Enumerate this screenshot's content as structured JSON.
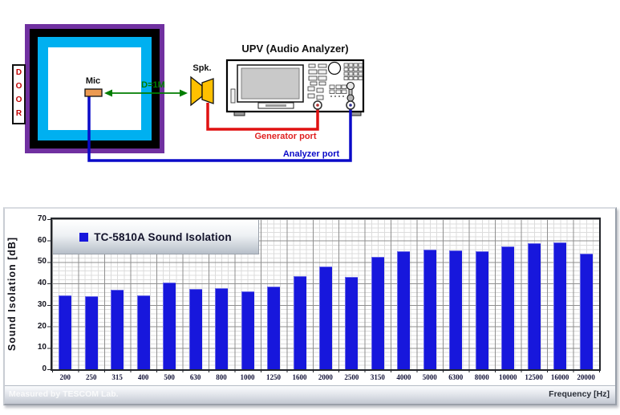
{
  "diagram": {
    "door_label": "DOOR",
    "mic_label": "Mic",
    "spk_label": "Spk.",
    "distance_label": "D=1M",
    "device_title": "UPV (Audio Analyzer)",
    "generator_port_label": "Generator port",
    "analyzer_port_label": "Analyzer port",
    "colors": {
      "chamber_outer": "#7030A0",
      "chamber_mid": "#000000",
      "chamber_inner": "#00B0F0",
      "mic": "#EC9A52",
      "speaker": "#FFC000",
      "generator_cable": "#E01111",
      "analyzer_cable": "#0A0AC8",
      "distance_arrow": "#007D00",
      "door_text": "#C00000"
    }
  },
  "chart_data": {
    "type": "bar",
    "title": "TC-5810A Sound Isolation",
    "legend": [
      "TC-5810A Sound Isolation"
    ],
    "legend_position": "inside-top-left",
    "categories": [
      "200",
      "250",
      "315",
      "400",
      "500",
      "630",
      "800",
      "1000",
      "1250",
      "1600",
      "2000",
      "2500",
      "3150",
      "4000",
      "5000",
      "6300",
      "8000",
      "10000",
      "12500",
      "16000",
      "20000"
    ],
    "values": [
      34.3,
      34.0,
      37.0,
      34.4,
      40.5,
      37.6,
      37.9,
      36.5,
      38.7,
      43.4,
      47.8,
      43.2,
      52.4,
      55.0,
      55.7,
      55.5,
      55.2,
      57.2,
      58.7,
      59.2,
      54.0
    ],
    "xlabel": "Frequency [Hz]",
    "ylabel": "Sound Isolation [dB]",
    "ylim": [
      0,
      70
    ],
    "ytick_step": 10,
    "grid": true,
    "bar_color": "#1717DC"
  },
  "footer": {
    "measured_by": "Measured by TESCOM Lab.",
    "xaxis_label": "Frequency [Hz]"
  }
}
